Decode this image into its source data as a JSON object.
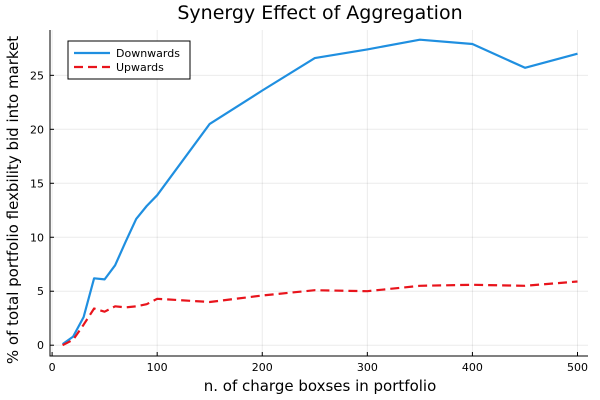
{
  "chart_data": {
    "type": "line",
    "title": "Synergy Effect of Aggregation",
    "xlabel": "n. of charge boxses in portfolio",
    "ylabel": "% of total portfolio flexbility bid into market",
    "xlim": [
      -2,
      510
    ],
    "ylim": [
      -1,
      29.2
    ],
    "xticks": [
      0,
      100,
      200,
      300,
      400,
      500
    ],
    "yticks": [
      0,
      5,
      10,
      15,
      20,
      25
    ],
    "grid": true,
    "legend_position": "top-left",
    "series": [
      {
        "name": "Downwards",
        "color": "#1f8fe0",
        "dash": "solid",
        "x": [
          10,
          20,
          30,
          40,
          50,
          60,
          70,
          80,
          90,
          100,
          150,
          200,
          250,
          300,
          350,
          400,
          450,
          500
        ],
        "y": [
          0.1,
          0.8,
          2.6,
          6.2,
          6.1,
          7.4,
          9.6,
          11.7,
          12.9,
          13.9,
          20.5,
          23.6,
          26.6,
          27.4,
          28.3,
          27.9,
          25.7,
          27.0
        ]
      },
      {
        "name": "Upwards",
        "color": "#e8141c",
        "dash": "dashed",
        "x": [
          10,
          20,
          30,
          40,
          50,
          60,
          70,
          80,
          90,
          100,
          150,
          200,
          250,
          300,
          350,
          400,
          450,
          500
        ],
        "y": [
          0.0,
          0.5,
          1.9,
          3.4,
          3.1,
          3.6,
          3.5,
          3.6,
          3.8,
          4.3,
          4.0,
          4.6,
          5.1,
          5.0,
          5.5,
          5.6,
          5.5,
          5.9
        ]
      }
    ]
  }
}
